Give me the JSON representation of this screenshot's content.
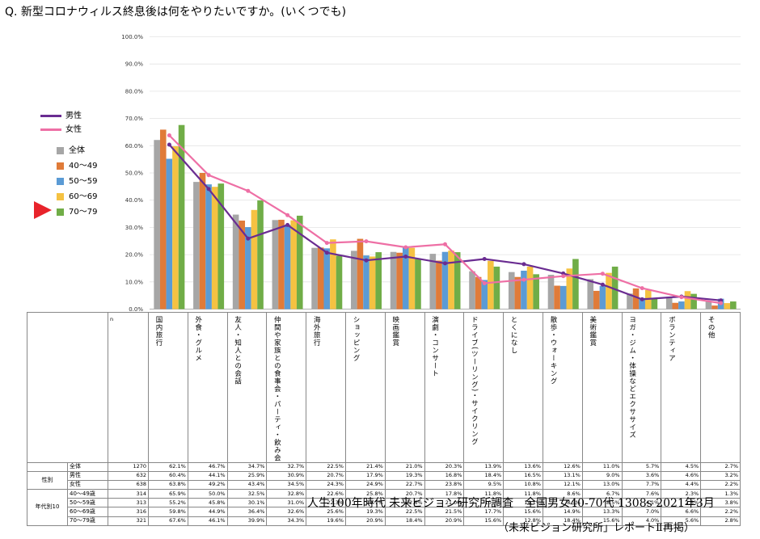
{
  "question": "Q. 新型コロナウィルス終息後は何をやりたいですか。(いくつでも)",
  "legend": {
    "lines": [
      {
        "name": "男性",
        "color": "#6a2c91"
      },
      {
        "name": "女性",
        "color": "#ee6fa5"
      }
    ],
    "bars": [
      {
        "name": "全体",
        "color": "#a6a6a6"
      },
      {
        "name": "40〜49",
        "color": "#e07b39"
      },
      {
        "name": "50〜59",
        "color": "#5b9bd5"
      },
      {
        "name": "60〜69",
        "color": "#f5c242"
      },
      {
        "name": "70〜79",
        "color": "#70ad47"
      }
    ]
  },
  "chart_data": {
    "type": "bar",
    "ylim": [
      0,
      100
    ],
    "yticks": [
      "0.0%",
      "10.0%",
      "20.0%",
      "30.0%",
      "40.0%",
      "50.0%",
      "60.0%",
      "70.0%",
      "80.0%",
      "90.0%",
      "100.0%"
    ],
    "categories": [
      "国内旅行",
      "外食・グルメ",
      "友人・知人との会話",
      "仲間や家族との食事会・パーティ・飲み会",
      "海外旅行",
      "ショッピング",
      "映画鑑賞",
      "演劇・コンサート",
      "ドライブ(ツーリング)・サイクリング",
      "とくになし",
      "散歩・ウォーキング",
      "美術鑑賞",
      "ヨガ・ジム・体操などエクササイズ",
      "ボランティア",
      "その他"
    ],
    "bar_series": [
      {
        "name": "全体",
        "values": [
          62.1,
          46.7,
          34.7,
          32.7,
          22.5,
          21.4,
          21.0,
          20.3,
          13.9,
          13.6,
          12.6,
          11.0,
          5.7,
          4.5,
          2.7
        ]
      },
      {
        "name": "40〜49",
        "values": [
          65.9,
          50.0,
          32.5,
          32.8,
          22.6,
          25.8,
          20.7,
          17.8,
          11.8,
          11.8,
          8.6,
          6.7,
          7.6,
          2.3,
          1.3
        ]
      },
      {
        "name": "50〜59",
        "values": [
          55.2,
          45.8,
          30.1,
          31.0,
          22.3,
          19.7,
          22.6,
          21.0,
          10.7,
          14.1,
          8.5,
          8.5,
          4.1,
          2.8,
          3.8
        ]
      },
      {
        "name": "60〜69",
        "values": [
          59.8,
          44.9,
          36.4,
          32.6,
          25.6,
          19.3,
          22.5,
          21.5,
          17.7,
          15.6,
          14.9,
          13.3,
          7.0,
          6.6,
          2.2
        ]
      },
      {
        "name": "70〜79",
        "values": [
          67.6,
          46.1,
          39.9,
          34.3,
          19.6,
          20.9,
          18.4,
          20.9,
          15.6,
          12.8,
          18.4,
          15.6,
          4.0,
          5.6,
          2.8
        ]
      }
    ],
    "line_series": [
      {
        "name": "男性",
        "values": [
          60.4,
          44.1,
          25.9,
          30.9,
          20.7,
          17.9,
          19.3,
          16.8,
          18.4,
          16.5,
          13.1,
          9.0,
          3.6,
          4.6,
          3.2
        ]
      },
      {
        "name": "女性",
        "values": [
          63.8,
          49.2,
          43.4,
          34.5,
          24.3,
          24.9,
          22.7,
          23.8,
          9.5,
          10.8,
          12.1,
          13.0,
          7.7,
          4.4,
          2.2
        ]
      }
    ]
  },
  "table": {
    "n_header": "n",
    "col_headers": [
      "国内旅行",
      "外食・グルメ",
      "友人・知人との会話",
      "仲間や家族との食事会・パーティ・飲み会",
      "海外旅行",
      "ショッピング",
      "映画鑑賞",
      "演劇・コンサート",
      "ドライブ(ツーリング)・サイクリング",
      "とくになし",
      "散歩・ウォーキング",
      "美術鑑賞",
      "ヨガ・ジム・体操などエクササイズ",
      "ボランティア",
      "その他"
    ],
    "groups": [
      {
        "label": "",
        "rows": [
          {
            "label": "全体",
            "n": "1270",
            "cells": [
              "62.1%",
              "46.7%",
              "34.7%",
              "32.7%",
              "22.5%",
              "21.4%",
              "21.0%",
              "20.3%",
              "13.9%",
              "13.6%",
              "12.6%",
              "11.0%",
              "5.7%",
              "4.5%",
              "2.7%"
            ]
          }
        ]
      },
      {
        "label": "性別",
        "rows": [
          {
            "label": "男性",
            "n": "632",
            "cells": [
              "60.4%",
              "44.1%",
              "25.9%",
              "30.9%",
              "20.7%",
              "17.9%",
              "19.3%",
              "16.8%",
              "18.4%",
              "16.5%",
              "13.1%",
              "9.0%",
              "3.6%",
              "4.6%",
              "3.2%"
            ]
          },
          {
            "label": "女性",
            "n": "638",
            "cells": [
              "63.8%",
              "49.2%",
              "43.4%",
              "34.5%",
              "24.3%",
              "24.9%",
              "22.7%",
              "23.8%",
              "9.5%",
              "10.8%",
              "12.1%",
              "13.0%",
              "7.7%",
              "4.4%",
              "2.2%"
            ]
          }
        ]
      },
      {
        "label": "年代別10",
        "rows": [
          {
            "label": "40〜49歳",
            "n": "314",
            "cells": [
              "65.9%",
              "50.0%",
              "32.5%",
              "32.8%",
              "22.6%",
              "25.8%",
              "20.7%",
              "17.8%",
              "11.8%",
              "11.8%",
              "8.6%",
              "6.7%",
              "7.6%",
              "2.3%",
              "1.3%"
            ]
          },
          {
            "label": "50〜59歳",
            "n": "313",
            "cells": [
              "55.2%",
              "45.8%",
              "30.1%",
              "31.0%",
              "22.3%",
              "19.7%",
              "22.6%",
              "21.0%",
              "10.7%",
              "14.1%",
              "8.5%",
              "8.5%",
              "4.1%",
              "2.8%",
              "3.8%"
            ]
          },
          {
            "label": "60〜69歳",
            "n": "316",
            "cells": [
              "59.8%",
              "44.9%",
              "36.4%",
              "32.6%",
              "25.6%",
              "19.3%",
              "22.5%",
              "21.5%",
              "17.7%",
              "15.6%",
              "14.9%",
              "13.3%",
              "7.0%",
              "6.6%",
              "2.2%"
            ]
          },
          {
            "label": "70〜79歳",
            "n": "321",
            "cells": [
              "67.6%",
              "46.1%",
              "39.9%",
              "34.3%",
              "19.6%",
              "20.9%",
              "18.4%",
              "20.9%",
              "15.6%",
              "12.8%",
              "18.4%",
              "15.6%",
              "4.0%",
              "5.6%",
              "2.8%"
            ]
          }
        ]
      }
    ]
  },
  "footer": "人生100年時代 未来ビジョン研究所調査　全国男女40-70代 1308s  2021年3月",
  "footer_note": "（未来ビジョン研究所」レポートⅡ再掲）"
}
